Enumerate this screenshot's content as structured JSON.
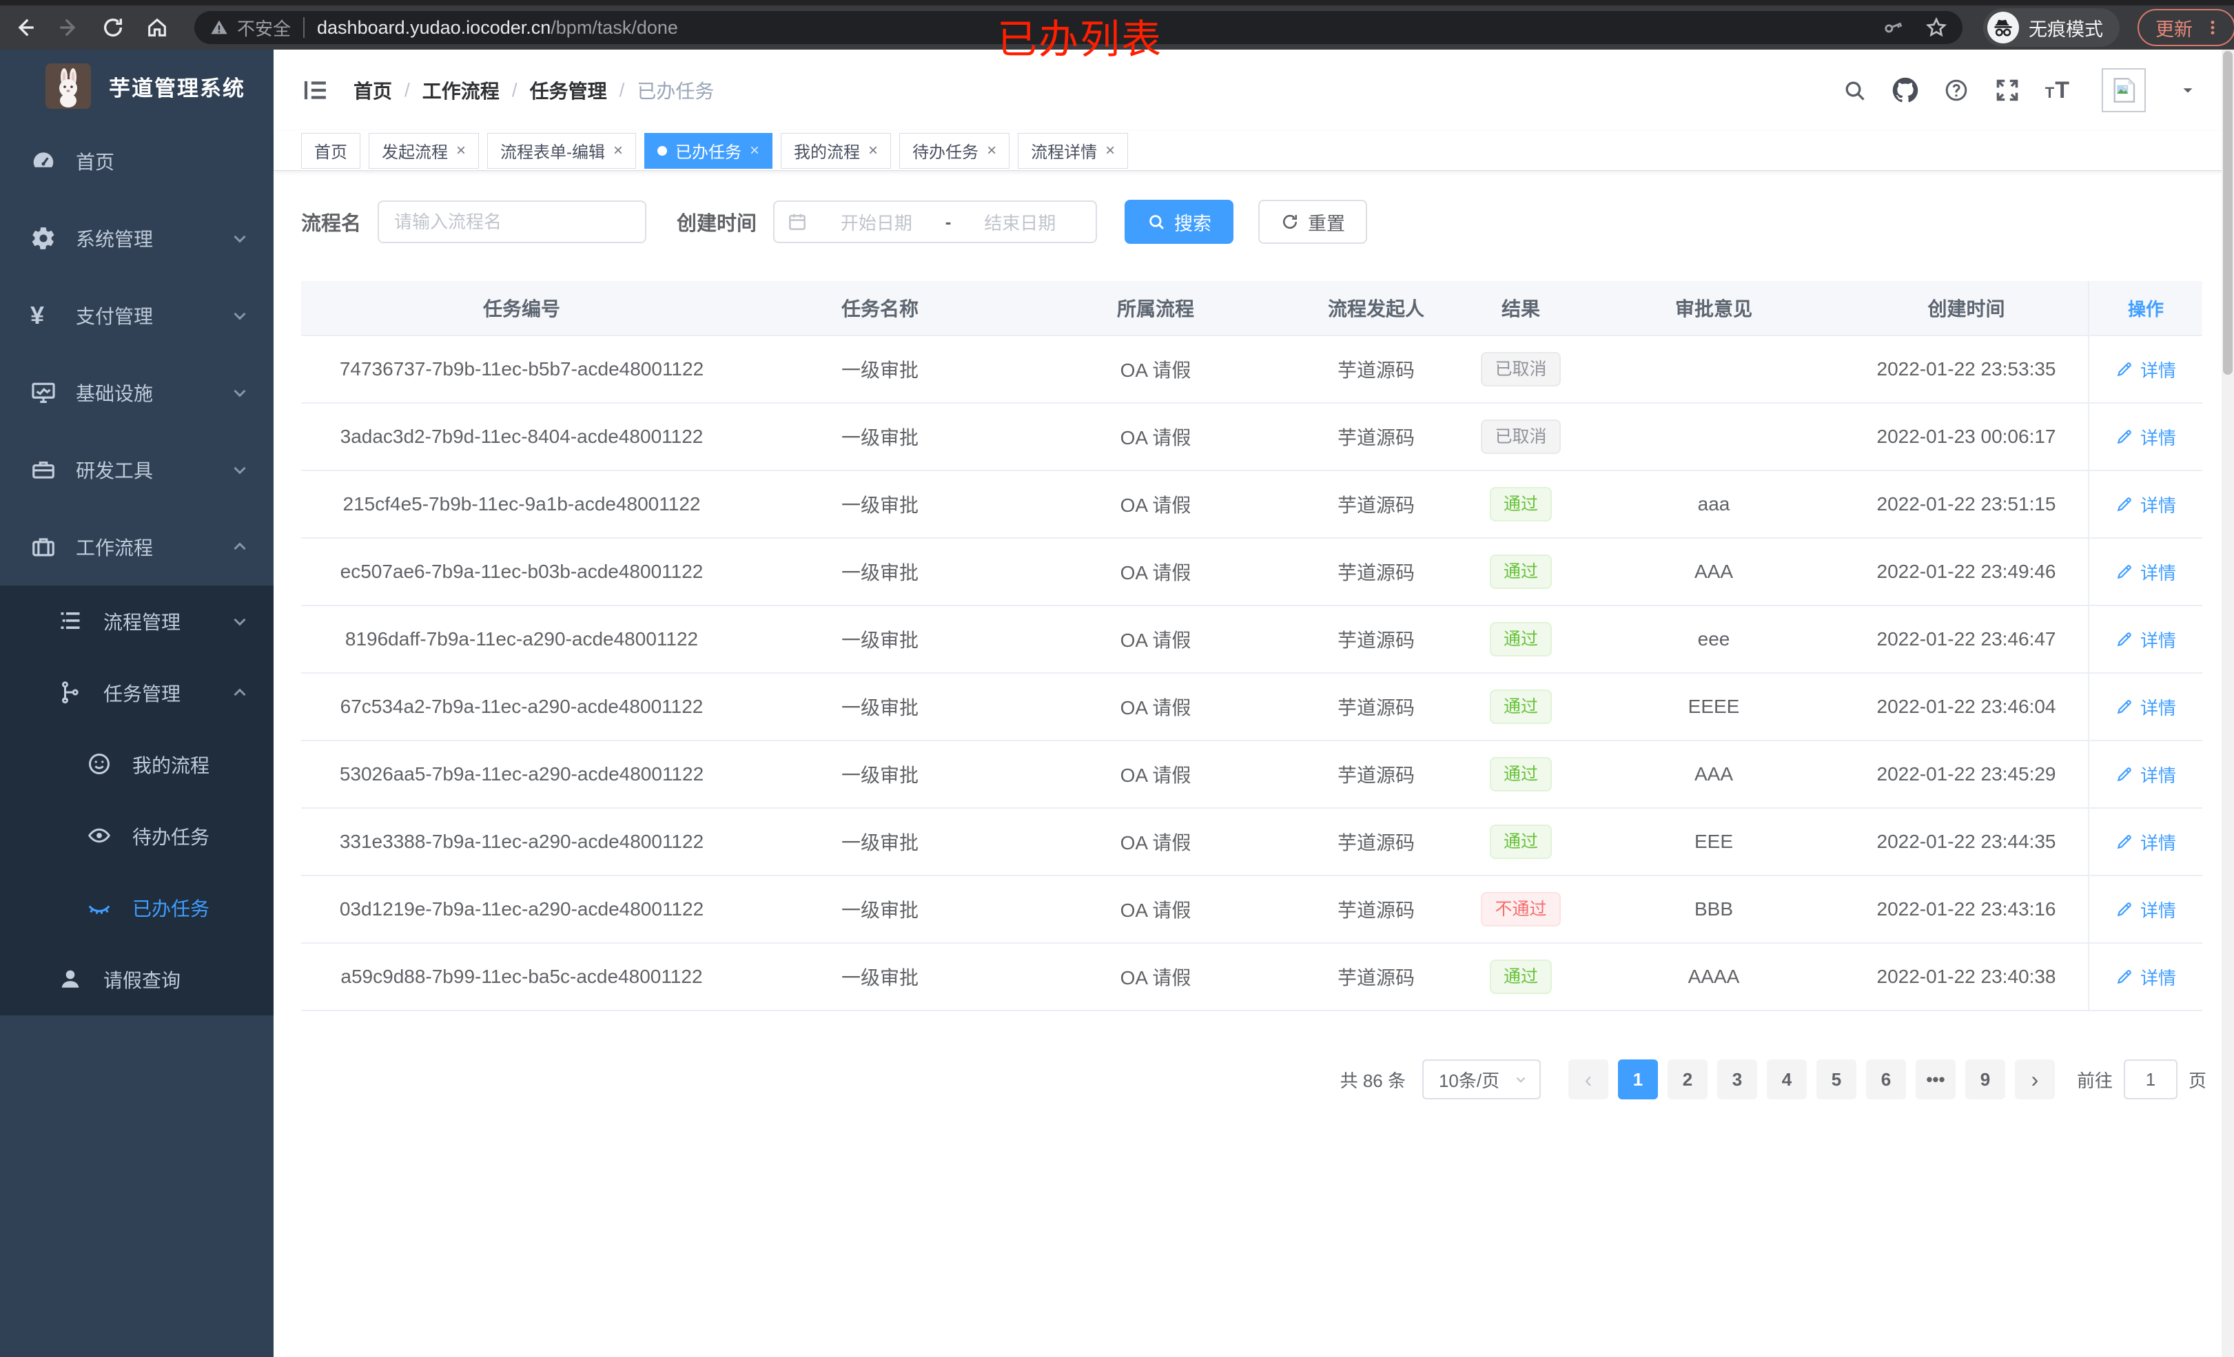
{
  "browser": {
    "security_warning": "不安全",
    "url_domain": "dashboard.yudao.iocoder.cn",
    "url_path": "/bpm/task/done",
    "incognito_label": "无痕模式",
    "update_label": "更新"
  },
  "annotation": {
    "text": "已办列表",
    "color": "#ff1f00"
  },
  "sidebar": {
    "title": "芋道管理系统",
    "items": [
      {
        "key": "home",
        "label": "首页",
        "icon": "dashboard-icon"
      },
      {
        "key": "system",
        "label": "系统管理",
        "icon": "gear-icon",
        "chevron": "down"
      },
      {
        "key": "payment",
        "label": "支付管理",
        "icon": "yen-icon",
        "chevron": "down"
      },
      {
        "key": "infra",
        "label": "基础设施",
        "icon": "monitor-icon",
        "chevron": "down"
      },
      {
        "key": "devtools",
        "label": "研发工具",
        "icon": "toolbox-icon",
        "chevron": "down"
      },
      {
        "key": "workflow",
        "label": "工作流程",
        "icon": "briefcase-icon",
        "chevron": "up"
      }
    ],
    "submenu": [
      {
        "key": "process-mgmt",
        "label": "流程管理",
        "icon": "tree-list-icon",
        "chevron": "down",
        "level": "parent"
      },
      {
        "key": "task-mgmt",
        "label": "任务管理",
        "icon": "branch-icon",
        "chevron": "up",
        "level": "parent"
      },
      {
        "key": "my-process",
        "label": "我的流程",
        "icon": "face-icon",
        "level": "leaf"
      },
      {
        "key": "todo-task",
        "label": "待办任务",
        "icon": "eye-open-icon",
        "level": "leaf"
      },
      {
        "key": "done-task",
        "label": "已办任务",
        "icon": "eye-close-icon",
        "level": "leaf",
        "active": true
      },
      {
        "key": "leave-query",
        "label": "请假查询",
        "icon": "user-icon",
        "level": "parent"
      }
    ]
  },
  "breadcrumb": [
    "首页",
    "工作流程",
    "任务管理",
    "已办任务"
  ],
  "tabs": [
    {
      "label": "首页",
      "closable": false,
      "active": false
    },
    {
      "label": "发起流程",
      "closable": true,
      "active": false
    },
    {
      "label": "流程表单-编辑",
      "closable": true,
      "active": false
    },
    {
      "label": "已办任务",
      "closable": true,
      "active": true
    },
    {
      "label": "我的流程",
      "closable": true,
      "active": false
    },
    {
      "label": "待办任务",
      "closable": true,
      "active": false
    },
    {
      "label": "流程详情",
      "closable": true,
      "active": false
    }
  ],
  "filters": {
    "name_label": "流程名",
    "name_placeholder": "请输入流程名",
    "time_label": "创建时间",
    "start_placeholder": "开始日期",
    "range_separator": "-",
    "end_placeholder": "结束日期",
    "search_label": "搜索",
    "reset_label": "重置"
  },
  "table": {
    "columns": [
      "任务编号",
      "任务名称",
      "所属流程",
      "流程发起人",
      "结果",
      "审批意见",
      "创建时间",
      "操作"
    ],
    "detail_label": "详情",
    "rows": [
      {
        "id": "74736737-7b9b-11ec-b5b7-acde48001122",
        "name": "一级审批",
        "process": "OA 请假",
        "starter": "芋道源码",
        "result": "已取消",
        "result_type": "info",
        "opinion": "",
        "time": "2022-01-22 23:53:35"
      },
      {
        "id": "3adac3d2-7b9d-11ec-8404-acde48001122",
        "name": "一级审批",
        "process": "OA 请假",
        "starter": "芋道源码",
        "result": "已取消",
        "result_type": "info",
        "opinion": "",
        "time": "2022-01-23 00:06:17"
      },
      {
        "id": "215cf4e5-7b9b-11ec-9a1b-acde48001122",
        "name": "一级审批",
        "process": "OA 请假",
        "starter": "芋道源码",
        "result": "通过",
        "result_type": "success",
        "opinion": "aaa",
        "time": "2022-01-22 23:51:15"
      },
      {
        "id": "ec507ae6-7b9a-11ec-b03b-acde48001122",
        "name": "一级审批",
        "process": "OA 请假",
        "starter": "芋道源码",
        "result": "通过",
        "result_type": "success",
        "opinion": "AAA",
        "time": "2022-01-22 23:49:46"
      },
      {
        "id": "8196daff-7b9a-11ec-a290-acde48001122",
        "name": "一级审批",
        "process": "OA 请假",
        "starter": "芋道源码",
        "result": "通过",
        "result_type": "success",
        "opinion": "eee",
        "time": "2022-01-22 23:46:47"
      },
      {
        "id": "67c534a2-7b9a-11ec-a290-acde48001122",
        "name": "一级审批",
        "process": "OA 请假",
        "starter": "芋道源码",
        "result": "通过",
        "result_type": "success",
        "opinion": "EEEE",
        "time": "2022-01-22 23:46:04"
      },
      {
        "id": "53026aa5-7b9a-11ec-a290-acde48001122",
        "name": "一级审批",
        "process": "OA 请假",
        "starter": "芋道源码",
        "result": "通过",
        "result_type": "success",
        "opinion": "AAA",
        "time": "2022-01-22 23:45:29"
      },
      {
        "id": "331e3388-7b9a-11ec-a290-acde48001122",
        "name": "一级审批",
        "process": "OA 请假",
        "starter": "芋道源码",
        "result": "通过",
        "result_type": "success",
        "opinion": "EEE",
        "time": "2022-01-22 23:44:35"
      },
      {
        "id": "03d1219e-7b9a-11ec-a290-acde48001122",
        "name": "一级审批",
        "process": "OA 请假",
        "starter": "芋道源码",
        "result": "不通过",
        "result_type": "danger",
        "opinion": "BBB",
        "time": "2022-01-22 23:43:16"
      },
      {
        "id": "a59c9d88-7b99-11ec-ba5c-acde48001122",
        "name": "一级审批",
        "process": "OA 请假",
        "starter": "芋道源码",
        "result": "通过",
        "result_type": "success",
        "opinion": "AAAA",
        "time": "2022-01-22 23:40:38"
      }
    ]
  },
  "pagination": {
    "total_text": "共 86 条",
    "page_size": "10条/页",
    "pages": [
      "1",
      "2",
      "3",
      "4",
      "5",
      "6",
      "•••",
      "9"
    ],
    "active_page": "1",
    "goto_label": "前往",
    "goto_value": "1",
    "page_unit": "页"
  },
  "colors": {
    "accent": "#409EFF",
    "success": "#67C23A",
    "danger": "#F56C6C",
    "info": "#909399",
    "sidebar_bg": "#304156",
    "submenu_bg": "#1F2D3D",
    "annotation_red": "#FF1F00",
    "table_header_bg": "#F5F7FA"
  }
}
